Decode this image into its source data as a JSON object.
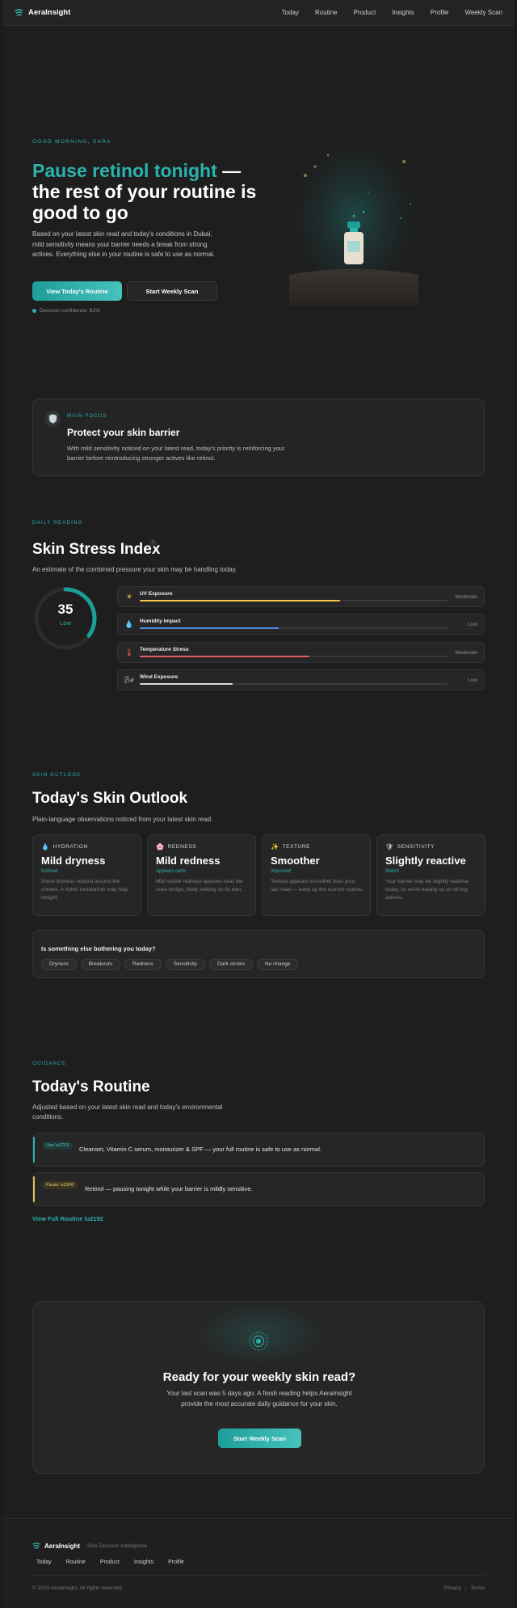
{
  "nav": {
    "brand": "AeraInsight",
    "links": [
      "Today",
      "Routine",
      "Product",
      "Insights",
      "Profile",
      "Weekly Scan"
    ]
  },
  "hero": {
    "greeting": "GOOD MORNING, SARA",
    "title_accent": "Pause retinol tonight",
    "title_rest": " — the rest of your routine is good to go",
    "description": "Based on your latest skin read and today's conditions in Dubai, mild sensitivity means your barrier needs a break from strong actives. Everything else in your routine is safe to use as normal.",
    "primary_button": "View Today's Routine",
    "secondary_button": "Start Weekly Scan",
    "confidence": "Decision confidence: 82%"
  },
  "main_focus": {
    "label": "MAIN FOCUS",
    "title": "Protect your skin barrier",
    "description": "With mild sensitivity noticed on your latest read, today's priority is reinforcing your barrier before reintroducing stronger actives like retinol."
  },
  "stress": {
    "label": "DAILY READING",
    "title": "Skin Stress Index",
    "info": "i",
    "subtitle": "An estimate of the combined pressure your skin may be handling today.",
    "score": "35",
    "score_value": 35,
    "level": "Low",
    "factors": [
      {
        "name": "UV Exposure",
        "level": "Moderate",
        "icon": "sun-icon",
        "fill": 0.65,
        "color": "#f2c84b"
      },
      {
        "name": "Humidity Impact",
        "level": "Low",
        "icon": "droplet-icon",
        "fill": 0.45,
        "color": "#4a90e2"
      },
      {
        "name": "Temperature Stress",
        "level": "Moderate",
        "icon": "thermometer-icon",
        "fill": 0.55,
        "color": "#e85d5d"
      },
      {
        "name": "Wind Exposure",
        "level": "Low",
        "icon": "wind-icon",
        "fill": 0.3,
        "color": "#d8d8d8"
      }
    ]
  },
  "outlook": {
    "label": "SKIN OUTLOOK",
    "title": "Today's Skin Outlook",
    "subtitle": "Plain-language observations noticed from your latest skin read.",
    "cards": [
      {
        "category": "HYDRATION",
        "icon": "droplet-icon",
        "title": "Mild dryness",
        "status": "Noticed",
        "description": "Some dryness noticed around the cheeks. A richer moisturizer may help tonight."
      },
      {
        "category": "REDNESS",
        "icon": "flower-icon",
        "title": "Mild redness",
        "status": "Appears calm",
        "description": "Mild visible redness appears near the nose bridge, likely settling on its own."
      },
      {
        "category": "TEXTURE",
        "icon": "sparkles-icon",
        "title": "Smoother",
        "status": "Improved",
        "description": "Texture appears smoother than your last read — keep up the current routine."
      },
      {
        "category": "SENSITIVITY",
        "icon": "shield-icon",
        "title": "Slightly reactive",
        "status": "Watch",
        "description": "Your barrier may be slightly reactive today, so we're easing up on strong actives."
      }
    ],
    "question": "Is something else bothering you today?",
    "chips": [
      "Dryness",
      "Breakouts",
      "Redness",
      "Sensitivity",
      "Dark circles",
      "No change"
    ]
  },
  "routine": {
    "label": "GUIDANCE",
    "title": "Today's Routine",
    "subtitle": "Adjusted based on your latest skin read and today's environmental conditions.",
    "items": [
      {
        "badge": "Use \\u2713",
        "text": "Cleanser, Vitamin C serum, moisturizer & SPF — your full routine is safe to use as normal.",
        "color": "#2bb3ad"
      },
      {
        "badge": "Pause \\u23F8",
        "text": "Retinol — pausing tonight while your barrier is mildly sensitive.",
        "color": "#e0c060"
      }
    ],
    "link": "View Full Routine \\u2192"
  },
  "cta": {
    "title": "Ready for your weekly skin read?",
    "description": "Your last scan was 5 days ago. A fresh reading helps AeraInsight provide the most accurate daily guidance for your skin.",
    "button": "Start Weekly Scan"
  },
  "footer": {
    "brand": "AeraInsight",
    "tagline": "Skin Decision Intelligence",
    "links": [
      "Today",
      "Routine",
      "Product",
      "Insights",
      "Profile"
    ],
    "copyright": "© 2024 AeraInsight. All rights reserved.",
    "privacy": "Privacy",
    "separator": "|",
    "terms": "Terms"
  }
}
